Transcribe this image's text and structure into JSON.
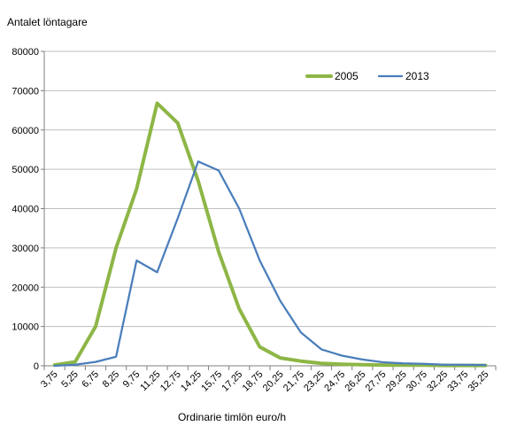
{
  "chart_data": {
    "type": "line",
    "title": "",
    "ylabel": "Antalet löntagare",
    "xlabel": "Ordinarie timlön euro/h",
    "ylim": [
      0,
      80000
    ],
    "yticks": [
      0,
      10000,
      20000,
      30000,
      40000,
      50000,
      60000,
      70000,
      80000
    ],
    "grid": true,
    "legend_position": "top-right",
    "categories": [
      "3,75",
      "5,25",
      "6,75",
      "8,25",
      "9,75",
      "11,25",
      "12,75",
      "14,25",
      "15,75",
      "17,25",
      "18,75",
      "20,25",
      "21,75",
      "23,25",
      "24,75",
      "26,25",
      "27,75",
      "29,25",
      "30,75",
      "32,25",
      "33,75",
      "35,25"
    ],
    "series": [
      {
        "name": "2005",
        "color": "#8db646",
        "values": [
          200,
          1000,
          10000,
          30000,
          45000,
          66800,
          61800,
          47000,
          29000,
          14500,
          4800,
          2000,
          1200,
          600,
          400,
          300,
          200,
          150,
          150,
          100,
          100,
          100
        ]
      },
      {
        "name": "2013",
        "color": "#4a7ebb",
        "values": [
          0,
          300,
          1000,
          2300,
          26800,
          23800,
          37500,
          52000,
          49700,
          40000,
          26800,
          16500,
          8500,
          4200,
          2600,
          1600,
          900,
          600,
          500,
          300,
          250,
          200
        ]
      }
    ]
  }
}
